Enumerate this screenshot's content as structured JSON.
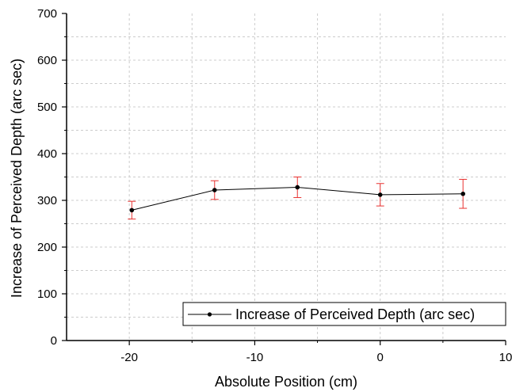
{
  "chart_data": {
    "type": "line",
    "title": "",
    "xlabel": "Absolute Position (cm)",
    "ylabel": "Increase of Perceived Depth (arc sec)",
    "xlim": [
      -25,
      10
    ],
    "ylim": [
      0,
      700
    ],
    "x_ticks": [
      -20,
      -10,
      0,
      10
    ],
    "x_tick_labels": [
      "-20",
      "-10",
      "0",
      "10"
    ],
    "x_minor_ticks": [
      -25,
      -15,
      -5,
      5
    ],
    "y_ticks": [
      0,
      100,
      200,
      300,
      400,
      500,
      600,
      700
    ],
    "y_tick_labels": [
      "0",
      "100",
      "200",
      "300",
      "400",
      "500",
      "600",
      "700"
    ],
    "y_minor_ticks": [
      50,
      150,
      250,
      350,
      450,
      550,
      650
    ],
    "grid": true,
    "legend_position": "bottom-right",
    "series": [
      {
        "name": "Increase of Perceived Depth (arc sec)",
        "color": "#000000",
        "error_bar_color": "#e8312f",
        "points": [
          {
            "x": -19.8,
            "y": 279,
            "err_low": 19,
            "err_high": 19
          },
          {
            "x": -13.2,
            "y": 322,
            "err_low": 20,
            "err_high": 20
          },
          {
            "x": -6.6,
            "y": 328,
            "err_low": 22,
            "err_high": 22
          },
          {
            "x": 0.0,
            "y": 312,
            "err_low": 24,
            "err_high": 24
          },
          {
            "x": 6.6,
            "y": 314,
            "err_low": 31,
            "err_high": 31
          }
        ]
      }
    ]
  }
}
